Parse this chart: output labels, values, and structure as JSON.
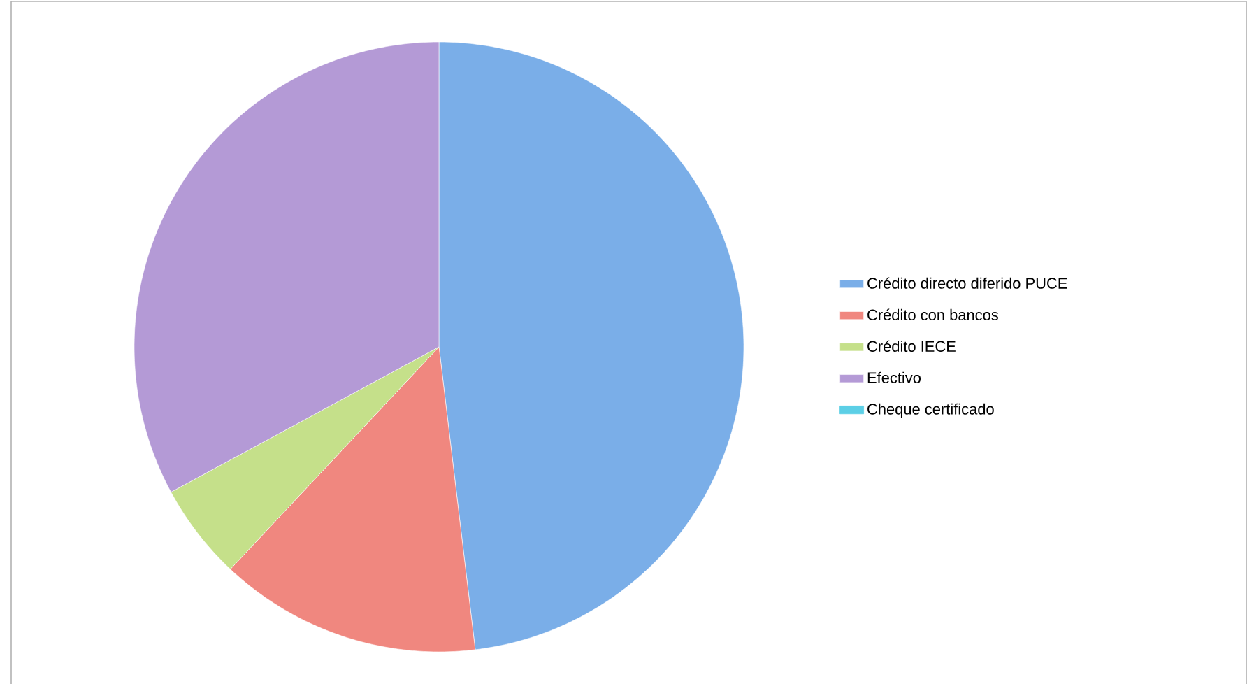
{
  "chart_data": {
    "type": "pie",
    "categories": [
      "Crédito directo diferido PUCE",
      "Crédito con bancos",
      "Crédito IECE",
      "Efectivo",
      "Cheque certificado"
    ],
    "values": [
      48.1,
      13.9,
      5.1,
      32.9,
      0
    ],
    "colors": [
      "#7aaee8",
      "#f0877f",
      "#c5e08a",
      "#b49ad6",
      "#5ccfe6"
    ],
    "legend": "right"
  }
}
